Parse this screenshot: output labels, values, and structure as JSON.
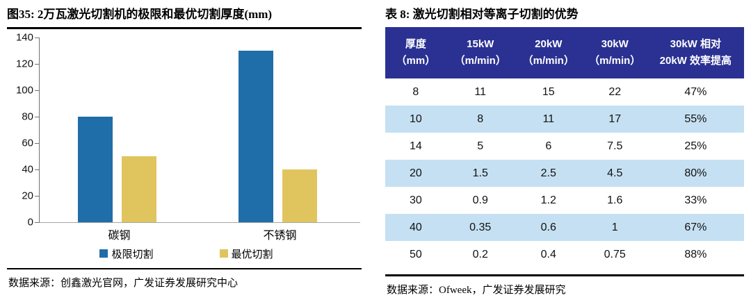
{
  "figure": {
    "title": "图35:  2万瓦激光切割机的极限和最优切割厚度(mm)",
    "source": "数据来源：创鑫激光官网，广发证券发展研究中心"
  },
  "chart_data": {
    "type": "bar",
    "title": "2万瓦激光切割机的极限和最优切割厚度(mm)",
    "categories": [
      "碳钢",
      "不锈钢"
    ],
    "series": [
      {
        "name": "极限切割",
        "color": "#1F6DA9",
        "values": [
          80,
          130
        ]
      },
      {
        "name": "最优切割",
        "color": "#E0C55E",
        "values": [
          50,
          40
        ]
      }
    ],
    "xlabel": "",
    "ylabel": "",
    "ylim": [
      0,
      140
    ],
    "yticks": [
      0,
      20,
      40,
      60,
      80,
      100,
      120,
      140
    ],
    "grid": false,
    "legend_position": "bottom"
  },
  "table": {
    "title": "表 8:  激光切割相对等离子切割的优势",
    "source": "数据来源：Ofweek，广发证券发展研究",
    "header": [
      {
        "line1": "厚度",
        "line2": "（mm）"
      },
      {
        "line1": "15kW",
        "line2": "（m/min）"
      },
      {
        "line1": "20kW",
        "line2": "（m/min）"
      },
      {
        "line1": "30kW",
        "line2": "（m/min）"
      },
      {
        "line1": "30kW 相对",
        "line2": "20kW 效率提高"
      }
    ],
    "rows": [
      [
        "8",
        "11",
        "15",
        "22",
        "47%"
      ],
      [
        "10",
        "8",
        "11",
        "17",
        "55%"
      ],
      [
        "14",
        "5",
        "6",
        "7.5",
        "25%"
      ],
      [
        "20",
        "1.5",
        "2.5",
        "4.5",
        "80%"
      ],
      [
        "30",
        "0.9",
        "1.2",
        "1.6",
        "33%"
      ],
      [
        "40",
        "0.35",
        "0.6",
        "1",
        "67%"
      ],
      [
        "50",
        "0.2",
        "0.4",
        "0.75",
        "88%"
      ]
    ],
    "colors": {
      "header_bg": "#2B3192",
      "header_text": "#FFFFFF",
      "row_bg": "#FFFFFF",
      "row_alt_bg": "#C5E0F2"
    }
  }
}
